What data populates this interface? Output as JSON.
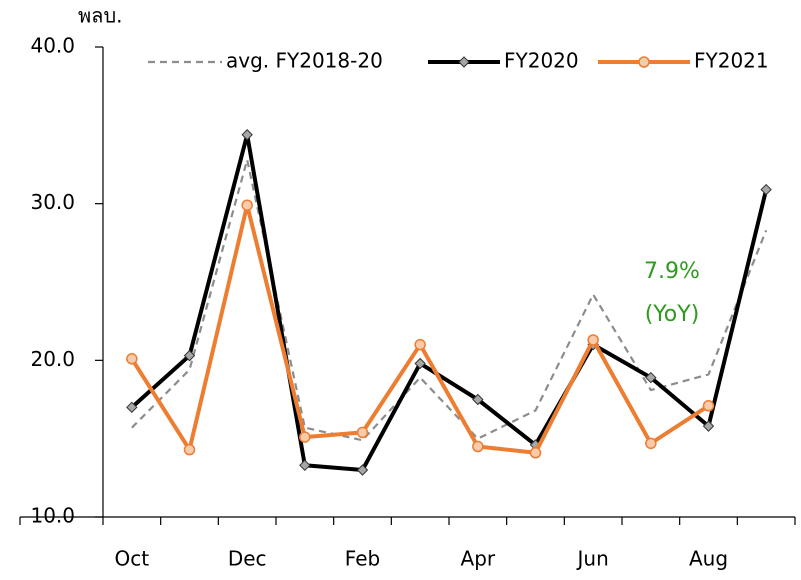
{
  "chart_data": {
    "type": "line",
    "unit_label": "พลบ.",
    "categories": [
      "Oct",
      null,
      "Dec",
      null,
      "Feb",
      null,
      "Apr",
      null,
      "Jun",
      null,
      "Aug",
      null
    ],
    "series": [
      {
        "name": "avg. FY2018-20",
        "color": "#8c8c8c",
        "dash": true,
        "marker": "none",
        "values": [
          15.7,
          19.4,
          32.8,
          15.7,
          14.9,
          18.9,
          15.0,
          16.8,
          24.2,
          18.1,
          19.1,
          28.3
        ]
      },
      {
        "name": "FY2020",
        "color": "#000000",
        "marker": "diamond",
        "marker_fill": "#a6a6a6",
        "values": [
          17.0,
          20.3,
          34.4,
          13.3,
          13.0,
          19.8,
          17.5,
          14.6,
          21.0,
          18.9,
          15.8,
          30.9
        ]
      },
      {
        "name": "FY2021",
        "color": "#ed7d31",
        "marker": "circle",
        "marker_fill": "#f8cbad",
        "values": [
          20.1,
          14.3,
          29.9,
          15.1,
          15.4,
          21.0,
          14.5,
          14.1,
          21.3,
          14.7,
          17.1,
          null
        ]
      }
    ],
    "ylim": [
      10,
      40
    ],
    "yticks": [
      {
        "value": 10,
        "label": "10.0"
      },
      {
        "value": 20,
        "label": "20.0"
      },
      {
        "value": 30,
        "label": "30.0"
      },
      {
        "value": 40,
        "label": "40.0"
      }
    ],
    "legend": "top-right",
    "annotations": [
      {
        "text": "7.9%",
        "color": "#2e9a1e"
      },
      {
        "text": "(YoY)",
        "color": "#2e9a1e"
      }
    ]
  }
}
